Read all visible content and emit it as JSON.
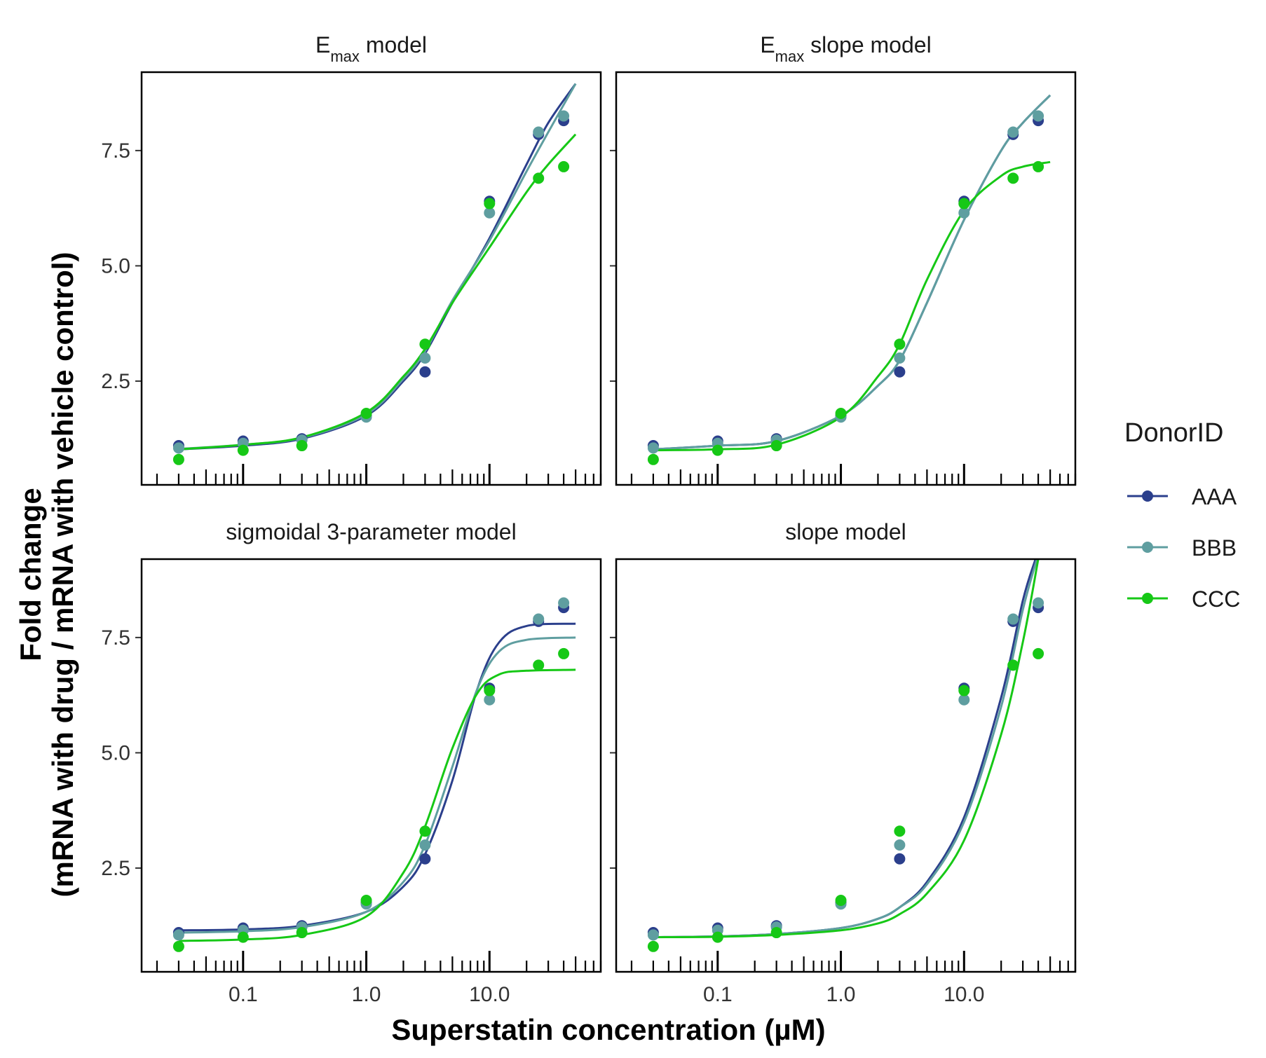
{
  "chart_data": {
    "type": "scatter",
    "xlabel": "Superstatin concentration (µM)",
    "ylabel_line1": "Fold change",
    "ylabel_line2": "(mRNA with drug / mRNA with vehicle control)",
    "x_scale": "log10",
    "xlim": [
      0.015,
      80
    ],
    "ylim": [
      0.25,
      9.2
    ],
    "x_tick_labels": [
      "0.1",
      "1.0",
      "10.0"
    ],
    "x_tick_values": [
      0.1,
      1,
      10
    ],
    "y_tick_labels": [
      "2.5",
      "5.0",
      "7.5"
    ],
    "y_tick_values": [
      2.5,
      5.0,
      7.5
    ],
    "grid": false,
    "legend": {
      "title": "DonorID",
      "position": "right",
      "items": [
        {
          "name": "AAA",
          "color": "#2B3F8C"
        },
        {
          "name": "BBB",
          "color": "#5F9EA0"
        },
        {
          "name": "CCC",
          "color": "#16C816"
        }
      ]
    },
    "panels": [
      {
        "title_main": "E",
        "title_sub": "max",
        "title_rest": " model",
        "series": [
          {
            "name": "AAA",
            "points": [
              [
                0.03,
                1.1
              ],
              [
                0.1,
                1.2
              ],
              [
                0.3,
                1.25
              ],
              [
                1,
                1.75
              ],
              [
                3,
                2.7
              ],
              [
                10,
                6.4
              ],
              [
                25,
                7.85
              ],
              [
                40,
                8.15
              ]
            ],
            "curve": [
              [
                0.03,
                1.02
              ],
              [
                0.1,
                1.1
              ],
              [
                0.3,
                1.25
              ],
              [
                1,
                1.75
              ],
              [
                2,
                2.5
              ],
              [
                3,
                3.1
              ],
              [
                5,
                4.2
              ],
              [
                10,
                5.6
              ],
              [
                20,
                7.2
              ],
              [
                30,
                8.1
              ],
              [
                50,
                8.95
              ]
            ]
          },
          {
            "name": "BBB",
            "points": [
              [
                0.03,
                1.05
              ],
              [
                0.1,
                1.15
              ],
              [
                0.3,
                1.22
              ],
              [
                1,
                1.72
              ],
              [
                3,
                3.0
              ],
              [
                10,
                6.15
              ],
              [
                25,
                7.9
              ],
              [
                40,
                8.25
              ]
            ],
            "curve": [
              [
                0.03,
                1.03
              ],
              [
                0.1,
                1.12
              ],
              [
                0.3,
                1.27
              ],
              [
                1,
                1.78
              ],
              [
                2,
                2.55
              ],
              [
                3,
                3.15
              ],
              [
                5,
                4.25
              ],
              [
                10,
                5.55
              ],
              [
                20,
                7.05
              ],
              [
                30,
                7.9
              ],
              [
                50,
                8.95
              ]
            ]
          },
          {
            "name": "CCC",
            "points": [
              [
                0.03,
                0.8
              ],
              [
                0.1,
                1.0
              ],
              [
                0.3,
                1.1
              ],
              [
                1,
                1.8
              ],
              [
                3,
                3.3
              ],
              [
                10,
                6.35
              ],
              [
                25,
                6.9
              ],
              [
                40,
                7.15
              ]
            ],
            "curve": [
              [
                0.03,
                1.02
              ],
              [
                0.1,
                1.12
              ],
              [
                0.3,
                1.28
              ],
              [
                1,
                1.82
              ],
              [
                2,
                2.6
              ],
              [
                3,
                3.2
              ],
              [
                5,
                4.2
              ],
              [
                10,
                5.4
              ],
              [
                20,
                6.6
              ],
              [
                30,
                7.2
              ],
              [
                50,
                7.85
              ]
            ]
          }
        ]
      },
      {
        "title_main": "E",
        "title_sub": "max",
        "title_rest": " slope model",
        "series": [
          {
            "name": "AAA",
            "points": [
              [
                0.03,
                1.1
              ],
              [
                0.1,
                1.2
              ],
              [
                0.3,
                1.25
              ],
              [
                1,
                1.75
              ],
              [
                3,
                2.7
              ],
              [
                10,
                6.4
              ],
              [
                25,
                7.85
              ],
              [
                40,
                8.15
              ]
            ],
            "curve": [
              [
                0.03,
                1.02
              ],
              [
                0.1,
                1.1
              ],
              [
                0.3,
                1.2
              ],
              [
                1,
                1.75
              ],
              [
                2,
                2.4
              ],
              [
                3,
                2.95
              ],
              [
                5,
                4.2
              ],
              [
                10,
                6.0
              ],
              [
                20,
                7.5
              ],
              [
                30,
                8.1
              ],
              [
                50,
                8.7
              ]
            ]
          },
          {
            "name": "BBB",
            "points": [
              [
                0.03,
                1.05
              ],
              [
                0.1,
                1.15
              ],
              [
                0.3,
                1.22
              ],
              [
                1,
                1.72
              ],
              [
                3,
                3.0
              ],
              [
                10,
                6.15
              ],
              [
                25,
                7.9
              ],
              [
                40,
                8.25
              ]
            ],
            "curve": [
              [
                0.03,
                1.02
              ],
              [
                0.1,
                1.1
              ],
              [
                0.3,
                1.2
              ],
              [
                1,
                1.75
              ],
              [
                2,
                2.4
              ],
              [
                3,
                2.95
              ],
              [
                5,
                4.2
              ],
              [
                10,
                6.0
              ],
              [
                20,
                7.5
              ],
              [
                30,
                8.1
              ],
              [
                50,
                8.7
              ]
            ]
          },
          {
            "name": "CCC",
            "points": [
              [
                0.03,
                0.8
              ],
              [
                0.1,
                1.0
              ],
              [
                0.3,
                1.1
              ],
              [
                1,
                1.8
              ],
              [
                3,
                3.3
              ],
              [
                10,
                6.35
              ],
              [
                25,
                6.9
              ],
              [
                40,
                7.15
              ]
            ],
            "curve": [
              [
                0.03,
                1.0
              ],
              [
                0.1,
                1.02
              ],
              [
                0.3,
                1.12
              ],
              [
                1,
                1.72
              ],
              [
                2,
                2.6
              ],
              [
                3,
                3.3
              ],
              [
                5,
                4.7
              ],
              [
                10,
                6.2
              ],
              [
                20,
                6.95
              ],
              [
                30,
                7.15
              ],
              [
                50,
                7.25
              ]
            ]
          }
        ]
      },
      {
        "title_main": "sigmoidal 3-parameter model",
        "title_sub": "",
        "title_rest": "",
        "series": [
          {
            "name": "AAA",
            "points": [
              [
                0.03,
                1.1
              ],
              [
                0.1,
                1.2
              ],
              [
                0.3,
                1.25
              ],
              [
                1,
                1.75
              ],
              [
                3,
                2.7
              ],
              [
                10,
                6.4
              ],
              [
                25,
                7.85
              ],
              [
                40,
                8.15
              ]
            ],
            "curve": [
              [
                0.03,
                1.15
              ],
              [
                0.1,
                1.17
              ],
              [
                0.3,
                1.25
              ],
              [
                1,
                1.55
              ],
              [
                2,
                2.1
              ],
              [
                3,
                2.8
              ],
              [
                5,
                4.4
              ],
              [
                8,
                6.4
              ],
              [
                12,
                7.4
              ],
              [
                20,
                7.75
              ],
              [
                50,
                7.8
              ]
            ]
          },
          {
            "name": "BBB",
            "points": [
              [
                0.03,
                1.05
              ],
              [
                0.1,
                1.15
              ],
              [
                0.3,
                1.22
              ],
              [
                1,
                1.72
              ],
              [
                3,
                3.0
              ],
              [
                10,
                6.15
              ],
              [
                25,
                7.9
              ],
              [
                40,
                8.25
              ]
            ],
            "curve": [
              [
                0.03,
                1.1
              ],
              [
                0.1,
                1.13
              ],
              [
                0.3,
                1.22
              ],
              [
                1,
                1.55
              ],
              [
                2,
                2.2
              ],
              [
                3,
                3.0
              ],
              [
                5,
                4.7
              ],
              [
                8,
                6.4
              ],
              [
                12,
                7.2
              ],
              [
                20,
                7.45
              ],
              [
                50,
                7.5
              ]
            ]
          },
          {
            "name": "CCC",
            "points": [
              [
                0.03,
                0.8
              ],
              [
                0.1,
                1.0
              ],
              [
                0.3,
                1.1
              ],
              [
                1,
                1.8
              ],
              [
                3,
                3.3
              ],
              [
                10,
                6.35
              ],
              [
                25,
                6.9
              ],
              [
                40,
                7.15
              ]
            ],
            "curve": [
              [
                0.03,
                0.92
              ],
              [
                0.1,
                0.95
              ],
              [
                0.3,
                1.05
              ],
              [
                1,
                1.45
              ],
              [
                2,
                2.4
              ],
              [
                3,
                3.4
              ],
              [
                5,
                5.1
              ],
              [
                8,
                6.3
              ],
              [
                12,
                6.7
              ],
              [
                20,
                6.78
              ],
              [
                50,
                6.8
              ]
            ]
          }
        ]
      },
      {
        "title_main": "slope model",
        "title_sub": "",
        "title_rest": "",
        "series": [
          {
            "name": "AAA",
            "points": [
              [
                0.03,
                1.1
              ],
              [
                0.1,
                1.2
              ],
              [
                0.3,
                1.25
              ],
              [
                1,
                1.75
              ],
              [
                3,
                2.7
              ],
              [
                10,
                6.4
              ],
              [
                25,
                7.85
              ],
              [
                40,
                8.15
              ]
            ],
            "curve": [
              [
                0.03,
                1.0
              ],
              [
                0.1,
                1.02
              ],
              [
                0.3,
                1.07
              ],
              [
                1,
                1.2
              ],
              [
                2,
                1.4
              ],
              [
                3,
                1.65
              ],
              [
                5,
                2.2
              ],
              [
                10,
                3.6
              ],
              [
                20,
                6.2
              ],
              [
                30,
                8.3
              ],
              [
                38,
                9.2
              ]
            ]
          },
          {
            "name": "BBB",
            "points": [
              [
                0.03,
                1.05
              ],
              [
                0.1,
                1.15
              ],
              [
                0.3,
                1.22
              ],
              [
                1,
                1.72
              ],
              [
                3,
                3.0
              ],
              [
                10,
                6.15
              ],
              [
                25,
                7.9
              ],
              [
                40,
                8.25
              ]
            ],
            "curve": [
              [
                0.03,
                1.0
              ],
              [
                0.1,
                1.02
              ],
              [
                0.3,
                1.07
              ],
              [
                1,
                1.2
              ],
              [
                2,
                1.4
              ],
              [
                3,
                1.65
              ],
              [
                5,
                2.15
              ],
              [
                10,
                3.5
              ],
              [
                20,
                6.0
              ],
              [
                30,
                8.1
              ],
              [
                39,
                9.2
              ]
            ]
          },
          {
            "name": "CCC",
            "points": [
              [
                0.03,
                0.8
              ],
              [
                0.1,
                1.0
              ],
              [
                0.3,
                1.1
              ],
              [
                1,
                1.8
              ],
              [
                3,
                3.3
              ],
              [
                10,
                6.35
              ],
              [
                25,
                6.9
              ],
              [
                40,
                7.15
              ]
            ],
            "curve": [
              [
                0.03,
                1.0
              ],
              [
                0.1,
                1.01
              ],
              [
                0.3,
                1.05
              ],
              [
                1,
                1.15
              ],
              [
                2,
                1.3
              ],
              [
                3,
                1.5
              ],
              [
                5,
                1.95
              ],
              [
                10,
                3.1
              ],
              [
                20,
                5.4
              ],
              [
                30,
                7.4
              ],
              [
                40,
                9.2
              ]
            ]
          }
        ]
      }
    ]
  }
}
